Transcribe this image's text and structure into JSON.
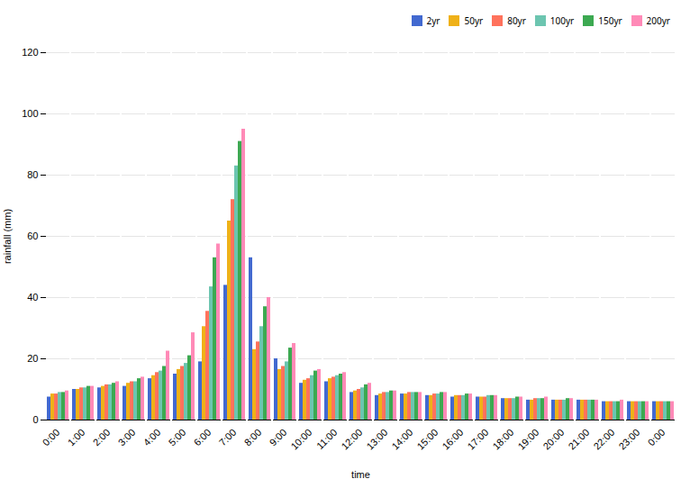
{
  "chart_data": {
    "type": "bar",
    "xlabel": "time",
    "ylabel": "rainfall (mm)",
    "categories": [
      "0:00",
      "1:00",
      "2:00",
      "3:00",
      "4:00",
      "5:00",
      "6:00",
      "7:00",
      "8:00",
      "9:00",
      "10:00",
      "11:00",
      "12:00",
      "13:00",
      "14:00",
      "15:00",
      "16:00",
      "17:00",
      "18:00",
      "19:00",
      "20:00",
      "21:00",
      "22:00",
      "23:00",
      "0:00"
    ],
    "series": [
      {
        "name": "2yr",
        "values": [
          7.5,
          10.0,
          10.5,
          11.0,
          13.5,
          15.0,
          19.0,
          44.0,
          53.0,
          20.0,
          12.0,
          12.5,
          9.0,
          8.0,
          8.5,
          8.0,
          7.5,
          7.5,
          7.0,
          6.5,
          6.5,
          6.5,
          6.0,
          6.0,
          6.0
        ]
      },
      {
        "name": "50yr",
        "values": [
          8.5,
          10.0,
          11.0,
          12.0,
          14.5,
          16.5,
          30.5,
          65.0,
          23.0,
          16.5,
          13.0,
          13.5,
          9.5,
          8.5,
          8.5,
          8.0,
          8.0,
          7.5,
          7.0,
          6.5,
          6.5,
          6.5,
          6.0,
          6.0,
          6.0
        ]
      },
      {
        "name": "80yr",
        "values": [
          8.5,
          10.5,
          11.5,
          12.5,
          15.5,
          17.5,
          35.5,
          72.0,
          25.5,
          17.5,
          13.5,
          14.0,
          10.0,
          9.0,
          9.0,
          8.5,
          8.0,
          7.5,
          7.0,
          7.0,
          6.5,
          6.5,
          6.0,
          6.0,
          6.0
        ]
      },
      {
        "name": "100yr",
        "values": [
          9.0,
          10.5,
          11.5,
          12.5,
          16.0,
          18.5,
          43.5,
          83.0,
          30.5,
          19.0,
          14.5,
          14.5,
          10.5,
          9.0,
          9.0,
          8.5,
          8.0,
          8.0,
          7.0,
          7.0,
          6.5,
          6.5,
          6.0,
          6.0,
          6.0
        ]
      },
      {
        "name": "150yr",
        "values": [
          9.0,
          11.0,
          12.0,
          13.5,
          17.5,
          21.0,
          53.0,
          91.0,
          37.0,
          23.5,
          16.0,
          15.0,
          11.5,
          9.5,
          9.0,
          9.0,
          8.5,
          8.0,
          7.5,
          7.0,
          7.0,
          6.5,
          6.0,
          6.0,
          6.0
        ]
      },
      {
        "name": "200yr",
        "values": [
          9.5,
          11.0,
          12.5,
          14.0,
          22.5,
          28.5,
          57.5,
          95.0,
          40.0,
          25.0,
          16.5,
          15.5,
          12.0,
          9.5,
          9.0,
          9.0,
          8.5,
          8.0,
          7.5,
          7.5,
          7.0,
          6.5,
          6.5,
          6.0,
          6.0
        ]
      }
    ],
    "ylim": [
      0,
      120
    ],
    "yticks": [
      0,
      20,
      40,
      60,
      80,
      100,
      120
    ],
    "grid": true,
    "legend": "upper right"
  }
}
